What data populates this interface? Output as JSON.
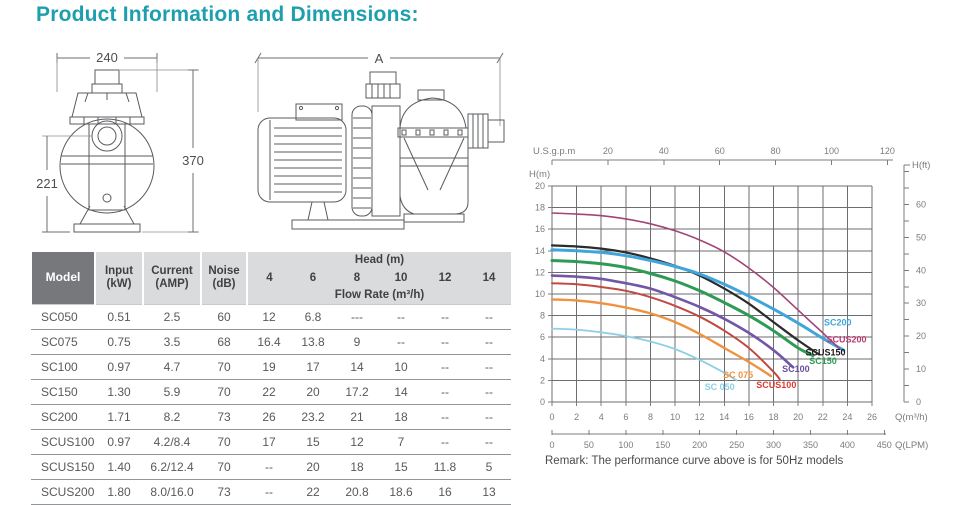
{
  "title": "Product Information and Dimensions:",
  "colors": {
    "title_accent": "#1d9fae",
    "table_header_bg": "#dadbdc",
    "table_model_header_bg": "#77787b",
    "body_text": "#58595b"
  },
  "drawings": {
    "front_view": {
      "width_dim": "240",
      "height_dim": "370",
      "port_height_dim": "221"
    },
    "side_view": {
      "length_dim": "A"
    }
  },
  "table": {
    "headers": {
      "model": "Model",
      "input": "Input",
      "input_unit": "(kW)",
      "current": "Current",
      "current_unit": "(AMP)",
      "noise": "Noise",
      "noise_unit": "(dB)",
      "head": "Head (m)",
      "flow_rate": "Flow Rate (m³/h)"
    },
    "head_values": [
      "4",
      "6",
      "8",
      "10",
      "12",
      "14"
    ],
    "rows": [
      {
        "model": "SC050",
        "input": "0.51",
        "current": "2.5",
        "noise": "60",
        "flow": [
          "12",
          "6.8",
          "---",
          "--",
          "--",
          "--"
        ]
      },
      {
        "model": "SC075",
        "input": "0.75",
        "current": "3.5",
        "noise": "68",
        "flow": [
          "16.4",
          "13.8",
          "9",
          "--",
          "--",
          "--"
        ]
      },
      {
        "model": "SC100",
        "input": "0.97",
        "current": "4.7",
        "noise": "70",
        "flow": [
          "19",
          "17",
          "14",
          "10",
          "--",
          "--"
        ]
      },
      {
        "model": "SC150",
        "input": "1.30",
        "current": "5.9",
        "noise": "70",
        "flow": [
          "22",
          "20",
          "17.2",
          "14",
          "--",
          "--"
        ]
      },
      {
        "model": "SC200",
        "input": "1.71",
        "current": "8.2",
        "noise": "73",
        "flow": [
          "26",
          "23.2",
          "21",
          "18",
          "--",
          "--"
        ]
      },
      {
        "model": "SCUS100",
        "input": "0.97",
        "current": "4.2/8.4",
        "noise": "70",
        "flow": [
          "17",
          "15",
          "12",
          "7",
          "--",
          "--"
        ]
      },
      {
        "model": "SCUS150",
        "input": "1.40",
        "current": "6.2/12.4",
        "noise": "70",
        "flow": [
          "--",
          "20",
          "18",
          "15",
          "11.8",
          "5"
        ]
      },
      {
        "model": "SCUS200",
        "input": "1.80",
        "current": "8.0/16.0",
        "noise": "73",
        "flow": [
          "--",
          "22",
          "20.8",
          "18.6",
          "16",
          "13"
        ]
      }
    ]
  },
  "chart_data": {
    "type": "line",
    "top_axis": {
      "label": "U.S.g.p.m",
      "ticks": [
        20,
        40,
        60,
        80,
        100,
        120
      ]
    },
    "x_axis": {
      "label": "Q(m³/h)",
      "ticks": [
        0,
        2,
        4,
        6,
        8,
        10,
        12,
        14,
        16,
        18,
        20,
        22,
        24,
        26
      ],
      "range": [
        0,
        26
      ]
    },
    "x_axis_secondary": {
      "label": "Q(LPM)",
      "ticks": [
        0,
        50,
        100,
        150,
        200,
        250,
        300,
        350,
        400,
        450
      ]
    },
    "y_axis": {
      "label": "H(m)",
      "ticks": [
        0,
        2,
        4,
        6,
        8,
        10,
        12,
        14,
        16,
        18,
        20
      ],
      "range": [
        0,
        20
      ]
    },
    "y_axis_right": {
      "label": "H(ft)",
      "ticks": [
        0,
        10,
        20,
        30,
        40,
        50,
        60
      ]
    },
    "grid": true,
    "series": [
      {
        "name": "SC050",
        "color": "#8ecfe6",
        "width": 1.8,
        "points": [
          [
            0,
            6.8
          ],
          [
            2,
            6.7
          ],
          [
            4,
            6.45
          ],
          [
            6,
            6.1
          ],
          [
            8,
            5.6
          ],
          [
            10,
            4.9
          ],
          [
            12,
            3.9
          ],
          [
            14,
            2.7
          ],
          [
            15,
            2.0
          ]
        ]
      },
      {
        "name": "SC075",
        "color": "#ef9240",
        "width": 2.4,
        "points": [
          [
            0,
            9.5
          ],
          [
            2,
            9.4
          ],
          [
            4,
            9.15
          ],
          [
            6,
            8.75
          ],
          [
            8,
            8.2
          ],
          [
            10,
            7.4
          ],
          [
            12,
            6.3
          ],
          [
            14,
            5.0
          ],
          [
            16,
            3.7
          ],
          [
            17.8,
            2.4
          ]
        ]
      },
      {
        "name": "SCUS100",
        "color": "#c24842",
        "width": 2.0,
        "points": [
          [
            0,
            11.0
          ],
          [
            2,
            10.9
          ],
          [
            4,
            10.65
          ],
          [
            6,
            10.3
          ],
          [
            8,
            9.7
          ],
          [
            10,
            8.9
          ],
          [
            12,
            7.9
          ],
          [
            14,
            6.6
          ],
          [
            16,
            5.0
          ],
          [
            18,
            2.8
          ],
          [
            18.5,
            2.1
          ]
        ]
      },
      {
        "name": "SC100",
        "color": "#7257a6",
        "width": 2.6,
        "points": [
          [
            0,
            11.7
          ],
          [
            2,
            11.6
          ],
          [
            4,
            11.4
          ],
          [
            6,
            11.0
          ],
          [
            8,
            10.5
          ],
          [
            10,
            9.7
          ],
          [
            12,
            8.8
          ],
          [
            14,
            7.7
          ],
          [
            16,
            6.4
          ],
          [
            18,
            4.8
          ],
          [
            19.6,
            3.2
          ]
        ]
      },
      {
        "name": "SC150",
        "color": "#2e9b55",
        "width": 3.0,
        "points": [
          [
            0,
            13.1
          ],
          [
            2,
            13.0
          ],
          [
            4,
            12.8
          ],
          [
            6,
            12.45
          ],
          [
            8,
            11.9
          ],
          [
            10,
            11.2
          ],
          [
            12,
            10.3
          ],
          [
            14,
            9.2
          ],
          [
            16,
            8.0
          ],
          [
            18,
            6.6
          ],
          [
            20,
            5.0
          ],
          [
            21.2,
            4.3
          ]
        ]
      },
      {
        "name": "SCUS150",
        "color": "#2b2b2b",
        "width": 2.2,
        "points": [
          [
            0,
            14.5
          ],
          [
            2,
            14.4
          ],
          [
            4,
            14.2
          ],
          [
            6,
            13.85
          ],
          [
            8,
            13.3
          ],
          [
            10,
            12.6
          ],
          [
            12,
            11.7
          ],
          [
            14,
            10.5
          ],
          [
            16,
            9.1
          ],
          [
            18,
            7.4
          ],
          [
            20,
            5.7
          ],
          [
            21.7,
            4.4
          ]
        ]
      },
      {
        "name": "SC200",
        "color": "#3fa5da",
        "width": 3.0,
        "points": [
          [
            0,
            14.1
          ],
          [
            2,
            14.0
          ],
          [
            4,
            13.85
          ],
          [
            6,
            13.55
          ],
          [
            8,
            13.1
          ],
          [
            10,
            12.55
          ],
          [
            12,
            11.85
          ],
          [
            14,
            10.9
          ],
          [
            16,
            9.8
          ],
          [
            18,
            8.6
          ],
          [
            20,
            7.3
          ],
          [
            22,
            5.9
          ],
          [
            23.7,
            4.8
          ]
        ]
      },
      {
        "name": "SCUS200",
        "color": "#a04577",
        "width": 1.6,
        "points": [
          [
            0,
            17.5
          ],
          [
            2,
            17.4
          ],
          [
            4,
            17.25
          ],
          [
            6,
            16.95
          ],
          [
            8,
            16.5
          ],
          [
            10,
            15.85
          ],
          [
            12,
            15.0
          ],
          [
            14,
            13.9
          ],
          [
            16,
            12.4
          ],
          [
            18,
            10.6
          ],
          [
            20,
            8.5
          ],
          [
            22,
            6.4
          ],
          [
            23.4,
            4.9
          ]
        ]
      }
    ],
    "curve_labels": [
      {
        "text": "SC200",
        "q": 22.1,
        "h": 7.1,
        "color": "#3fa5da"
      },
      {
        "text": "SCUS200",
        "q": 22.3,
        "h": 5.5,
        "color": "#bc3a72"
      },
      {
        "text": "SCUS150",
        "q": 20.6,
        "h": 4.3,
        "color": "#1a1a1a"
      },
      {
        "text": "SC150",
        "q": 20.9,
        "h": 3.5,
        "color": "#2e9b55"
      },
      {
        "text": "SC100",
        "q": 18.7,
        "h": 2.8,
        "color": "#6a4fa0"
      },
      {
        "text": "SCUS100",
        "q": 16.6,
        "h": 1.3,
        "color": "#de3b2f"
      },
      {
        "text": "SC 075",
        "q": 13.9,
        "h": 2.2,
        "color": "#ef9240"
      },
      {
        "text": "SC 050",
        "q": 12.4,
        "h": 1.1,
        "color": "#8ecfe6"
      }
    ],
    "remark": "Remark: The performance curve above is for 50Hz models"
  }
}
